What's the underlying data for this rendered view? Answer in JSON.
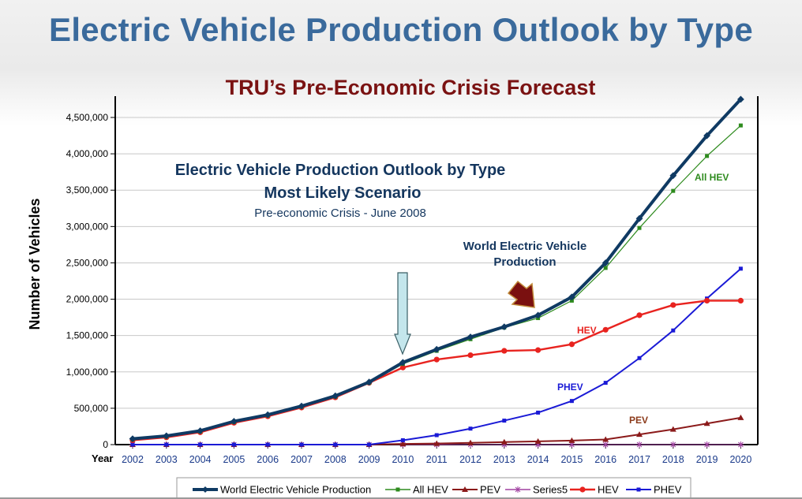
{
  "page": {
    "slide_title": "Electric Vehicle Production Outlook by Type",
    "chart_title": "TRU’s Pre-Economic Crisis Forecast"
  },
  "colors": {
    "title_blue": "#3a6a9c",
    "title_red": "#7a1212",
    "world": "#0f3a63",
    "all_hev": "#2e8b1e",
    "pev": "#8b1a1a",
    "series5": "#a040a0",
    "hev": "#e8231f",
    "phev": "#1a1ad6"
  },
  "chart_data": {
    "type": "line",
    "ylabel": "Number of Vehicles",
    "x_axis_word": "Year",
    "ylim": [
      0,
      4750000
    ],
    "grid": true,
    "legend_position": "bottom",
    "x": [
      "2002",
      "2003",
      "2004",
      "2005",
      "2006",
      "2007",
      "2008",
      "2009",
      "2010",
      "2011",
      "2012",
      "2013",
      "2014",
      "2015",
      "2016",
      "2017",
      "2018",
      "2019",
      "2020"
    ],
    "y_ticks": [
      0,
      500000,
      1000000,
      1500000,
      2000000,
      2500000,
      3000000,
      3500000,
      4000000,
      4500000
    ],
    "y_tick_labels": [
      "0",
      "500,000",
      "1,000,000",
      "1,500,000",
      "2,000,000",
      "2,500,000",
      "3,000,000",
      "3,500,000",
      "4,000,000",
      "4,500,000"
    ],
    "series": [
      {
        "name": "World Electric Vehicle Production",
        "key": "world",
        "marker": "diamond",
        "values": [
          80000,
          120000,
          190000,
          320000,
          410000,
          530000,
          670000,
          860000,
          1130000,
          1310000,
          1480000,
          1620000,
          1780000,
          2030000,
          2500000,
          3110000,
          3700000,
          4250000,
          4750000
        ]
      },
      {
        "name": "All HEV",
        "key": "all_hev",
        "marker": "square",
        "values": [
          70000,
          110000,
          180000,
          310000,
          400000,
          520000,
          660000,
          850000,
          1110000,
          1290000,
          1450000,
          1610000,
          1740000,
          1980000,
          2430000,
          2980000,
          3490000,
          3970000,
          4390000
        ]
      },
      {
        "name": "PEV",
        "key": "pev",
        "marker": "triangle",
        "values": [
          0,
          0,
          0,
          0,
          0,
          0,
          0,
          0,
          10000,
          15000,
          25000,
          35000,
          45000,
          55000,
          70000,
          140000,
          210000,
          290000,
          370000
        ]
      },
      {
        "name": "Series5",
        "key": "series5",
        "marker": "star",
        "values": [
          0,
          0,
          0,
          0,
          0,
          0,
          0,
          0,
          0,
          0,
          0,
          0,
          0,
          0,
          0,
          0,
          0,
          0,
          0
        ]
      },
      {
        "name": "HEV",
        "key": "hev",
        "marker": "circle",
        "values": [
          60000,
          100000,
          170000,
          300000,
          390000,
          510000,
          650000,
          850000,
          1060000,
          1170000,
          1230000,
          1290000,
          1300000,
          1380000,
          1580000,
          1780000,
          1920000,
          1980000,
          1980000
        ]
      },
      {
        "name": "PHEV",
        "key": "phev",
        "marker": "square",
        "values": [
          0,
          0,
          0,
          0,
          0,
          0,
          0,
          0,
          60000,
          130000,
          220000,
          330000,
          440000,
          600000,
          850000,
          1190000,
          1570000,
          2010000,
          2420000
        ]
      }
    ],
    "annotations": {
      "inner_title_1": "Electric Vehicle Production Outlook by Type",
      "inner_title_2": "Most Likely Scenario",
      "inner_subtitle": "Pre-economic Crisis - June 2008",
      "world_label_1": "World Electric Vehicle",
      "world_label_2": "Production",
      "all_hev_label": "All HEV",
      "hev_label": "HEV",
      "phev_label": "PHEV",
      "pev_label": "PEV"
    }
  }
}
